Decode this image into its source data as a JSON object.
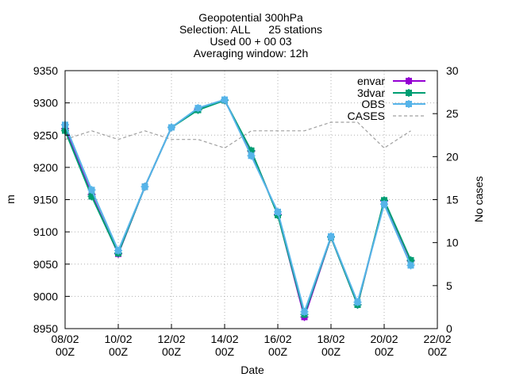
{
  "chart_data": {
    "type": "line",
    "title": [
      "Geopotential 300hPa",
      "Selection: ALL      25 stations",
      "Used 00 + 00 03",
      "Averaging window: 12h"
    ],
    "xlabel": "Date",
    "ylabel": "m",
    "y2label": "No cases",
    "xlim": [
      0,
      14
    ],
    "ylim": [
      8950,
      9350
    ],
    "y2lim": [
      0,
      30
    ],
    "grid": true,
    "legend_position": "top-right",
    "x_ticks": [
      {
        "x": 0,
        "line1": "08/02",
        "line2": "00Z"
      },
      {
        "x": 2,
        "line1": "10/02",
        "line2": "00Z"
      },
      {
        "x": 4,
        "line1": "12/02",
        "line2": "00Z"
      },
      {
        "x": 6,
        "line1": "14/02",
        "line2": "00Z"
      },
      {
        "x": 8,
        "line1": "16/02",
        "line2": "00Z"
      },
      {
        "x": 10,
        "line1": "18/02",
        "line2": "00Z"
      },
      {
        "x": 12,
        "line1": "20/02",
        "line2": "00Z"
      },
      {
        "x": 14,
        "line1": "22/02",
        "line2": "00Z"
      }
    ],
    "y_ticks": [
      "8950",
      "9000",
      "9050",
      "9100",
      "9150",
      "9200",
      "9250",
      "9300",
      "9350"
    ],
    "y2_ticks": [
      "0",
      "5",
      "10",
      "15",
      "20",
      "25",
      "30"
    ],
    "x": [
      0,
      1,
      2,
      3,
      4,
      5,
      6,
      7,
      8,
      9,
      10,
      11,
      12,
      13
    ],
    "series": [
      {
        "name": "envar",
        "color": "#9400d3",
        "marker": "plus-square",
        "axis": "left",
        "values": [
          9260,
          9158,
          9066,
          9170,
          9262,
          9290,
          9304,
          9225,
          9127,
          8968,
          9092,
          8987,
          9148,
          9055
        ]
      },
      {
        "name": "3dvar",
        "color": "#009e73",
        "marker": "plus-square",
        "axis": "left",
        "values": [
          9257,
          9155,
          9067,
          9170,
          9262,
          9289,
          9304,
          9226,
          9126,
          8972,
          9092,
          8987,
          9149,
          9056
        ]
      },
      {
        "name": "OBS",
        "color": "#56b4e9",
        "marker": "plus-square",
        "axis": "left",
        "values": [
          9266,
          9165,
          9071,
          9170,
          9262,
          9292,
          9305,
          9218,
          9131,
          8976,
          9093,
          8991,
          9143,
          9048
        ]
      },
      {
        "name": "CASES",
        "color": "#a0a0a0",
        "dashed": true,
        "axis": "right",
        "values": [
          22,
          23,
          22,
          23,
          22,
          22,
          21,
          23,
          23,
          23,
          24,
          24,
          21,
          23
        ]
      }
    ]
  }
}
